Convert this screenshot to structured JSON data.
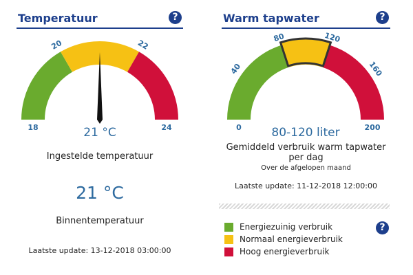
{
  "temperature": {
    "title": "Temperatuur",
    "help_icon": "?",
    "gauge": {
      "min": 18,
      "max": 24,
      "ticks": [
        "18",
        "20",
        "22",
        "24"
      ],
      "segments": [
        {
          "from": 18,
          "to": 20,
          "color": "#6aab2e"
        },
        {
          "from": 20,
          "to": 22,
          "color": "#f6c114"
        },
        {
          "from": 22,
          "to": 24,
          "color": "#d0103a"
        }
      ],
      "needle_value": 21,
      "value_label": "21 °C"
    },
    "setting_label": "Ingestelde temperatuur",
    "indoor_value": "21 °C",
    "indoor_label": "Binnentemperatuur",
    "last_update": "Laatste update: 13-12-2018 03:00:00"
  },
  "hot_water": {
    "title": "Warm tapwater",
    "help_icon": "?",
    "gauge": {
      "min": 0,
      "max": 200,
      "ticks": [
        "0",
        "40",
        "80",
        "120",
        "160",
        "200"
      ],
      "segments": [
        {
          "from": 0,
          "to": 80,
          "color": "#6aab2e"
        },
        {
          "from": 80,
          "to": 120,
          "color": "#f6c114"
        },
        {
          "from": 120,
          "to": 200,
          "color": "#d0103a"
        }
      ],
      "highlight": {
        "from": 80,
        "to": 120
      },
      "value_label": "80-120 liter"
    },
    "consumption_label": "Gemiddeld verbruik warm tapwater per dag",
    "period_label": "Over de afgelopen maand",
    "last_update": "Laatste update: 11-12-2018 12:00:00"
  },
  "legend": {
    "help_icon": "?",
    "items": [
      {
        "label": "Energiezuinig verbruik",
        "color": "#6aab2e"
      },
      {
        "label": "Normaal energieverbruik",
        "color": "#f6c114"
      },
      {
        "label": "Hoog energieverbruik",
        "color": "#d0103a"
      }
    ]
  }
}
